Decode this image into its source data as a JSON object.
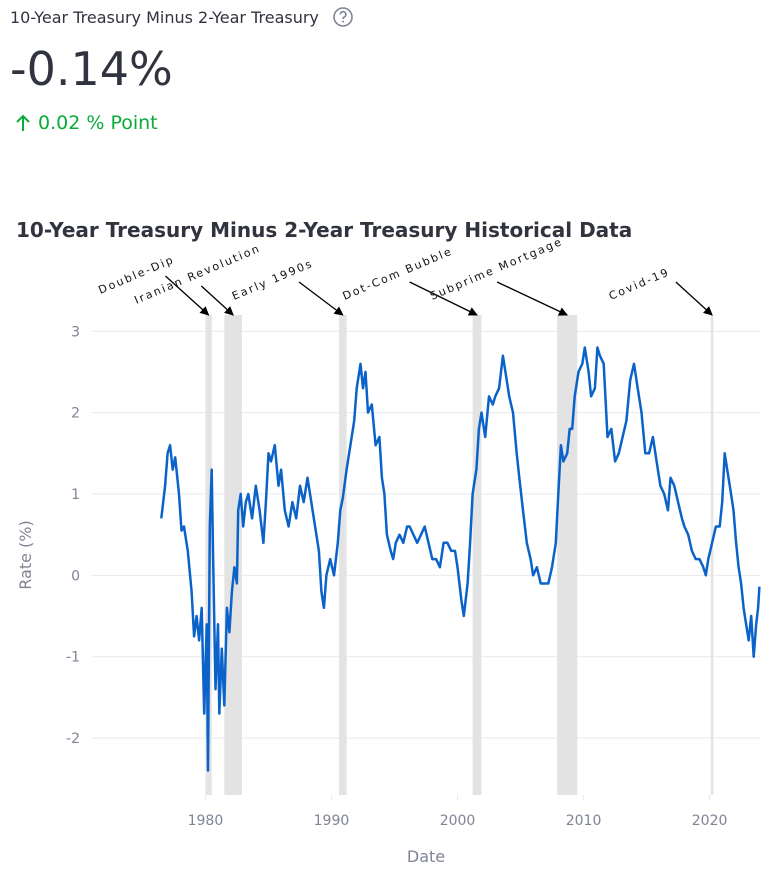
{
  "metric": {
    "label": "10-Year Treasury Minus 2-Year Treasury",
    "value": "-0.14%",
    "delta": "0.02 % Point"
  },
  "chart_data": {
    "type": "line",
    "title": "10-Year Treasury Minus 2-Year Treasury Historical Data",
    "x_label": "Date",
    "y_label": "Rate (%)",
    "color": "#0b63c9",
    "grid": true,
    "xlim": [
      1971,
      2024
    ],
    "xticks": [
      1980,
      1990,
      2000,
      2010,
      2020
    ],
    "ylim": [
      -2.7,
      3.2
    ],
    "yticks": [
      -2,
      -1,
      0,
      1,
      2,
      3
    ],
    "bands": [
      {
        "label": "Double-Dip",
        "start": 1980.0,
        "end": 1980.5
      },
      {
        "label": "Iranian Revolution",
        "start": 1981.5,
        "end": 1982.9
      },
      {
        "label": "Early 1990s",
        "start": 1990.6,
        "end": 1991.2
      },
      {
        "label": "Dot-Com Bubble",
        "start": 2001.2,
        "end": 2001.9
      },
      {
        "label": "Subprime Mortgage",
        "start": 2007.9,
        "end": 2009.5
      },
      {
        "label": "Covid-19",
        "start": 2020.1,
        "end": 2020.3
      }
    ],
    "x": [
      1976.5,
      1976.8,
      1977.0,
      1977.2,
      1977.4,
      1977.6,
      1977.9,
      1978.1,
      1978.3,
      1978.6,
      1978.9,
      1979.1,
      1979.3,
      1979.5,
      1979.7,
      1979.9,
      1980.1,
      1980.2,
      1980.35,
      1980.5,
      1980.6,
      1980.8,
      1981.0,
      1981.1,
      1981.3,
      1981.5,
      1981.7,
      1981.9,
      1982.1,
      1982.3,
      1982.5,
      1982.6,
      1982.8,
      1983.0,
      1983.2,
      1983.4,
      1983.7,
      1984.0,
      1984.3,
      1984.6,
      1984.8,
      1985.0,
      1985.2,
      1985.5,
      1985.8,
      1986.0,
      1986.3,
      1986.6,
      1986.9,
      1987.2,
      1987.5,
      1987.8,
      1988.1,
      1988.4,
      1988.7,
      1989.0,
      1989.2,
      1989.4,
      1989.6,
      1989.9,
      1990.2,
      1990.5,
      1990.7,
      1990.9,
      1991.2,
      1991.5,
      1991.8,
      1992.0,
      1992.3,
      1992.5,
      1992.7,
      1992.9,
      1993.2,
      1993.5,
      1993.8,
      1994.0,
      1994.2,
      1994.4,
      1994.7,
      1994.9,
      1995.1,
      1995.4,
      1995.7,
      1996.0,
      1996.2,
      1996.5,
      1996.8,
      1997.1,
      1997.4,
      1997.7,
      1998.0,
      1998.3,
      1998.6,
      1998.9,
      1999.2,
      1999.5,
      1999.8,
      2000.0,
      2000.3,
      2000.5,
      2000.8,
      2001.0,
      2001.2,
      2001.5,
      2001.7,
      2001.9,
      2002.2,
      2002.5,
      2002.8,
      2003.0,
      2003.3,
      2003.6,
      2003.9,
      2004.1,
      2004.4,
      2004.7,
      2004.9,
      2005.2,
      2005.5,
      2005.8,
      2006.0,
      2006.3,
      2006.6,
      2006.9,
      2007.2,
      2007.5,
      2007.8,
      2008.0,
      2008.2,
      2008.4,
      2008.7,
      2008.9,
      2009.1,
      2009.3,
      2009.6,
      2009.9,
      2010.1,
      2010.4,
      2010.6,
      2010.9,
      2011.1,
      2011.3,
      2011.6,
      2011.9,
      2012.2,
      2012.5,
      2012.8,
      2013.1,
      2013.4,
      2013.7,
      2014.0,
      2014.3,
      2014.6,
      2014.9,
      2015.2,
      2015.5,
      2015.8,
      2016.1,
      2016.4,
      2016.7,
      2016.9,
      2017.2,
      2017.5,
      2017.8,
      2018.0,
      2018.3,
      2018.6,
      2018.9,
      2019.2,
      2019.5,
      2019.7,
      2019.9,
      2020.2,
      2020.5,
      2020.8,
      2021.0,
      2021.2,
      2021.4,
      2021.6,
      2021.9,
      2022.1,
      2022.3,
      2022.5,
      2022.7,
      2022.9,
      2023.1,
      2023.3,
      2023.5,
      2023.7,
      2023.85,
      2023.95
    ],
    "values": [
      0.7,
      1.1,
      1.5,
      1.6,
      1.3,
      1.45,
      1.0,
      0.55,
      0.6,
      0.3,
      -0.2,
      -0.75,
      -0.5,
      -0.8,
      -0.4,
      -1.7,
      -0.6,
      -2.4,
      0.6,
      1.3,
      0.3,
      -1.4,
      -0.6,
      -1.7,
      -0.9,
      -1.6,
      -0.4,
      -0.7,
      -0.2,
      0.1,
      -0.1,
      0.8,
      1.0,
      0.6,
      0.9,
      1.0,
      0.7,
      1.1,
      0.8,
      0.4,
      0.9,
      1.5,
      1.4,
      1.6,
      1.1,
      1.3,
      0.8,
      0.6,
      0.9,
      0.7,
      1.1,
      0.9,
      1.2,
      0.9,
      0.6,
      0.3,
      -0.2,
      -0.4,
      0.0,
      0.2,
      0.0,
      0.4,
      0.8,
      0.95,
      1.3,
      1.6,
      1.9,
      2.3,
      2.6,
      2.3,
      2.5,
      2.0,
      2.1,
      1.6,
      1.7,
      1.2,
      1.0,
      0.5,
      0.3,
      0.2,
      0.4,
      0.5,
      0.4,
      0.6,
      0.6,
      0.5,
      0.4,
      0.5,
      0.6,
      0.4,
      0.2,
      0.2,
      0.1,
      0.4,
      0.4,
      0.3,
      0.3,
      0.1,
      -0.3,
      -0.5,
      -0.1,
      0.4,
      1.0,
      1.3,
      1.8,
      2.0,
      1.7,
      2.2,
      2.1,
      2.2,
      2.3,
      2.7,
      2.4,
      2.2,
      2.0,
      1.5,
      1.2,
      0.8,
      0.4,
      0.2,
      0.0,
      0.1,
      -0.1,
      -0.1,
      -0.1,
      0.1,
      0.4,
      1.0,
      1.6,
      1.4,
      1.5,
      1.8,
      1.8,
      2.2,
      2.5,
      2.6,
      2.8,
      2.5,
      2.2,
      2.3,
      2.8,
      2.7,
      2.6,
      1.7,
      1.8,
      1.4,
      1.5,
      1.7,
      1.9,
      2.4,
      2.6,
      2.3,
      2.0,
      1.5,
      1.5,
      1.7,
      1.4,
      1.1,
      1.0,
      0.8,
      1.2,
      1.1,
      0.9,
      0.7,
      0.6,
      0.5,
      0.3,
      0.2,
      0.2,
      0.1,
      0.0,
      0.2,
      0.4,
      0.6,
      0.6,
      0.9,
      1.5,
      1.3,
      1.1,
      0.8,
      0.4,
      0.1,
      -0.1,
      -0.4,
      -0.6,
      -0.8,
      -0.5,
      -1.0,
      -0.6,
      -0.4,
      -0.14
    ]
  }
}
